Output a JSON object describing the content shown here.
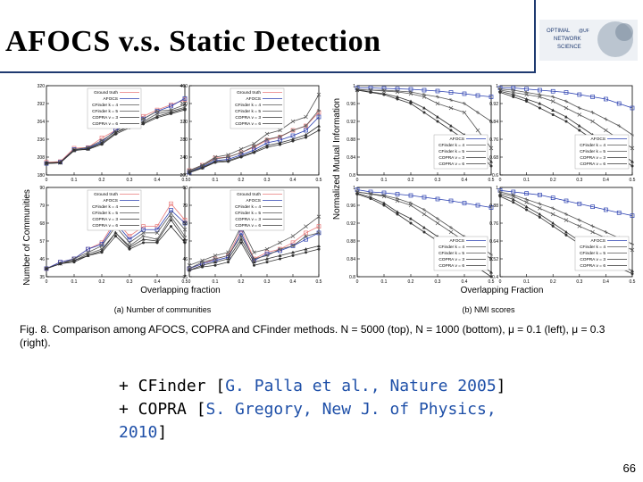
{
  "slide": {
    "title": "AFOCS v.s. Static Detection",
    "page_number": "66"
  },
  "logo": {
    "text_top": "OPTIMAL",
    "text_mid": "NETWORK",
    "text_bottom": "SCIENCE",
    "text_side": "@UF"
  },
  "figure": {
    "left_ylabel": "Number of Communities",
    "left_xlabel": "Overlapping fraction",
    "left_sublabel": "(a) Number of communities",
    "right_ylabel": "Normalized Mutual Information",
    "right_xlabel": "Overlapping Fraction",
    "right_sublabel": "(b) NMI scores",
    "legend_left": [
      "Ground truth",
      "AFOCS",
      "CFinder k = 4",
      "CFinder k = 5",
      "COPRA v = 3",
      "COPRA v = 6"
    ],
    "legend_right": [
      "AFOCS",
      "CFinder k = 4",
      "CFinder k = 5",
      "COPRA v = 3",
      "COPRA v = 6"
    ]
  },
  "caption": {
    "fig_label": "Fig. 8.",
    "text": "Comparison among AFOCS, COPRA and CFinder methods. N = 5000 (top), N = 1000 (bottom), μ = 0.1 (left), μ = 0.3 (right)."
  },
  "bullets": [
    {
      "prefix": "+ CFinder [",
      "ref": "G. Palla et al., Nature 2005",
      "suffix": "]"
    },
    {
      "prefix": "+ COPRA [",
      "ref": "S. Gregory, New J. of Physics, 2010",
      "suffix": "]"
    }
  ],
  "chart_data": [
    {
      "type": "line",
      "title": "",
      "panel": "number-communities-N5000-mu0.1",
      "x": [
        0,
        0.05,
        0.1,
        0.15,
        0.2,
        0.25,
        0.3,
        0.35,
        0.4,
        0.45,
        0.5
      ],
      "ylim": [
        180,
        320
      ],
      "xlim": [
        0,
        0.5
      ],
      "series": [
        {
          "name": "Ground truth",
          "values": [
            200,
            201,
            222,
            223,
            238,
            250,
            268,
            272,
            282,
            290,
            298
          ]
        },
        {
          "name": "AFOCS",
          "values": [
            198,
            200,
            220,
            222,
            232,
            250,
            260,
            268,
            280,
            288,
            300
          ]
        },
        {
          "name": "CFinder k = 4",
          "values": [
            198,
            199,
            219,
            221,
            230,
            246,
            256,
            264,
            276,
            280,
            286
          ]
        },
        {
          "name": "CFinder k = 5",
          "values": [
            198,
            199,
            220,
            223,
            234,
            248,
            262,
            268,
            280,
            282,
            290
          ]
        },
        {
          "name": "COPRA v = 3",
          "values": [
            199,
            200,
            219,
            220,
            228,
            244,
            254,
            260,
            270,
            276,
            282
          ]
        },
        {
          "name": "COPRA v = 6",
          "values": [
            198,
            199,
            218,
            221,
            230,
            246,
            258,
            262,
            272,
            278,
            284
          ]
        }
      ]
    },
    {
      "type": "line",
      "title": "",
      "panel": "number-communities-N5000-mu0.3",
      "x": [
        0,
        0.05,
        0.1,
        0.15,
        0.2,
        0.25,
        0.3,
        0.35,
        0.4,
        0.45,
        0.5
      ],
      "ylim": [
        200,
        400
      ],
      "xlim": [
        0,
        0.5
      ],
      "series": [
        {
          "name": "Ground truth",
          "values": [
            210,
            222,
            238,
            240,
            250,
            262,
            278,
            285,
            300,
            310,
            340
          ]
        },
        {
          "name": "AFOCS",
          "values": [
            206,
            218,
            232,
            235,
            245,
            256,
            272,
            278,
            288,
            300,
            330
          ]
        },
        {
          "name": "CFinder k = 4",
          "values": [
            210,
            222,
            240,
            245,
            258,
            270,
            292,
            300,
            320,
            330,
            380
          ]
        },
        {
          "name": "CFinder k = 5",
          "values": [
            208,
            220,
            236,
            240,
            250,
            264,
            280,
            286,
            300,
            310,
            345
          ]
        },
        {
          "name": "COPRA v = 3",
          "values": [
            205,
            215,
            228,
            230,
            240,
            250,
            262,
            268,
            276,
            284,
            300
          ]
        },
        {
          "name": "COPRA v = 6",
          "values": [
            206,
            216,
            230,
            232,
            242,
            252,
            266,
            272,
            280,
            290,
            310
          ]
        }
      ]
    },
    {
      "type": "line",
      "title": "",
      "panel": "number-communities-N1000-mu0.1",
      "x": [
        0,
        0.05,
        0.1,
        0.15,
        0.2,
        0.25,
        0.3,
        0.35,
        0.4,
        0.45,
        0.5
      ],
      "ylim": [
        35,
        90
      ],
      "xlim": [
        0,
        0.5
      ],
      "series": [
        {
          "name": "Ground truth",
          "values": [
            40,
            44,
            46,
            52,
            56,
            70,
            60,
            66,
            66,
            80,
            70
          ]
        },
        {
          "name": "AFOCS",
          "values": [
            40,
            44,
            46,
            52,
            55,
            68,
            58,
            64,
            64,
            76,
            68
          ]
        },
        {
          "name": "CFinder k = 4",
          "values": [
            40,
            43,
            46,
            50,
            54,
            66,
            56,
            62,
            62,
            74,
            64
          ]
        },
        {
          "name": "CFinder k = 5",
          "values": [
            40,
            43,
            45,
            49,
            52,
            62,
            54,
            60,
            58,
            72,
            60
          ]
        },
        {
          "name": "COPRA v = 3",
          "values": [
            40,
            43,
            44,
            48,
            50,
            60,
            52,
            56,
            56,
            66,
            56
          ]
        },
        {
          "name": "COPRA v = 6",
          "values": [
            40,
            43,
            45,
            48,
            51,
            62,
            53,
            58,
            57,
            70,
            58
          ]
        }
      ]
    },
    {
      "type": "line",
      "title": "",
      "panel": "number-communities-N1000-mu0.3",
      "x": [
        0,
        0.05,
        0.1,
        0.15,
        0.2,
        0.25,
        0.3,
        0.35,
        0.4,
        0.45,
        0.5
      ],
      "ylim": [
        35,
        90
      ],
      "xlim": [
        0,
        0.5
      ],
      "series": [
        {
          "name": "Ground truth",
          "values": [
            40,
            43,
            46,
            48,
            64,
            46,
            50,
            52,
            56,
            62,
            66
          ]
        },
        {
          "name": "AFOCS",
          "values": [
            40,
            43,
            45,
            47,
            62,
            45,
            49,
            51,
            54,
            58,
            62
          ]
        },
        {
          "name": "CFinder k = 4",
          "values": [
            42,
            45,
            48,
            50,
            66,
            50,
            52,
            56,
            60,
            66,
            72
          ]
        },
        {
          "name": "CFinder k = 5",
          "values": [
            40,
            44,
            46,
            48,
            60,
            46,
            48,
            52,
            54,
            60,
            62
          ]
        },
        {
          "name": "COPRA v = 3",
          "values": [
            39,
            41,
            42,
            44,
            56,
            42,
            44,
            46,
            48,
            50,
            52
          ]
        },
        {
          "name": "COPRA v = 6",
          "values": [
            39,
            42,
            44,
            46,
            58,
            44,
            46,
            48,
            50,
            52,
            54
          ]
        }
      ]
    },
    {
      "type": "line",
      "title": "",
      "panel": "nmi-N5000-mu0.1",
      "x": [
        0,
        0.05,
        0.1,
        0.15,
        0.2,
        0.25,
        0.3,
        0.35,
        0.4,
        0.45,
        0.5
      ],
      "ylim": [
        0.8,
        1.0
      ],
      "xlim": [
        0,
        0.5
      ],
      "series": [
        {
          "name": "AFOCS",
          "values": [
            0.995,
            0.995,
            0.994,
            0.993,
            0.992,
            0.99,
            0.988,
            0.985,
            0.982,
            0.978,
            0.975
          ]
        },
        {
          "name": "CFinder k = 4",
          "values": [
            0.99,
            0.99,
            0.988,
            0.986,
            0.982,
            0.975,
            0.96,
            0.95,
            0.94,
            0.9,
            0.86
          ]
        },
        {
          "name": "CFinder k = 5",
          "values": [
            0.992,
            0.99,
            0.99,
            0.988,
            0.986,
            0.98,
            0.975,
            0.968,
            0.96,
            0.94,
            0.92
          ]
        },
        {
          "name": "COPRA v = 3",
          "values": [
            0.99,
            0.985,
            0.98,
            0.97,
            0.96,
            0.94,
            0.92,
            0.9,
            0.88,
            0.85,
            0.82
          ]
        },
        {
          "name": "COPRA v = 6",
          "values": [
            0.99,
            0.986,
            0.982,
            0.975,
            0.965,
            0.95,
            0.93,
            0.91,
            0.89,
            0.86,
            0.83
          ]
        }
      ]
    },
    {
      "type": "line",
      "title": "",
      "panel": "nmi-N5000-mu0.3",
      "x": [
        0,
        0.05,
        0.1,
        0.15,
        0.2,
        0.25,
        0.3,
        0.35,
        0.4,
        0.45,
        0.5
      ],
      "ylim": [
        0.6,
        1.0
      ],
      "xlim": [
        0,
        0.5
      ],
      "series": [
        {
          "name": "AFOCS",
          "values": [
            0.99,
            0.99,
            0.985,
            0.98,
            0.975,
            0.97,
            0.96,
            0.95,
            0.94,
            0.92,
            0.9
          ]
        },
        {
          "name": "CFinder k = 4",
          "values": [
            0.98,
            0.97,
            0.96,
            0.95,
            0.93,
            0.9,
            0.87,
            0.84,
            0.8,
            0.76,
            0.72
          ]
        },
        {
          "name": "CFinder k = 5",
          "values": [
            0.985,
            0.98,
            0.97,
            0.96,
            0.95,
            0.93,
            0.9,
            0.88,
            0.85,
            0.82,
            0.78
          ]
        },
        {
          "name": "COPRA v = 3",
          "values": [
            0.97,
            0.95,
            0.93,
            0.9,
            0.87,
            0.84,
            0.8,
            0.76,
            0.72,
            0.68,
            0.64
          ]
        },
        {
          "name": "COPRA v = 6",
          "values": [
            0.975,
            0.96,
            0.94,
            0.92,
            0.89,
            0.86,
            0.82,
            0.78,
            0.74,
            0.7,
            0.66
          ]
        }
      ]
    },
    {
      "type": "line",
      "title": "",
      "panel": "nmi-N1000-mu0.1",
      "x": [
        0,
        0.05,
        0.1,
        0.15,
        0.2,
        0.25,
        0.3,
        0.35,
        0.4,
        0.45,
        0.5
      ],
      "ylim": [
        0.8,
        1.0
      ],
      "xlim": [
        0,
        0.5
      ],
      "series": [
        {
          "name": "AFOCS",
          "values": [
            0.995,
            0.99,
            0.988,
            0.985,
            0.982,
            0.978,
            0.974,
            0.97,
            0.965,
            0.96,
            0.955
          ]
        },
        {
          "name": "CFinder k = 4",
          "values": [
            0.99,
            0.985,
            0.98,
            0.97,
            0.96,
            0.94,
            0.92,
            0.9,
            0.88,
            0.86,
            0.84
          ]
        },
        {
          "name": "CFinder k = 5",
          "values": [
            0.99,
            0.986,
            0.982,
            0.975,
            0.965,
            0.95,
            0.93,
            0.91,
            0.89,
            0.87,
            0.85
          ]
        },
        {
          "name": "COPRA v = 3",
          "values": [
            0.985,
            0.975,
            0.96,
            0.94,
            0.92,
            0.9,
            0.88,
            0.86,
            0.84,
            0.82,
            0.8
          ]
        },
        {
          "name": "COPRA v = 6",
          "values": [
            0.987,
            0.978,
            0.965,
            0.945,
            0.93,
            0.91,
            0.89,
            0.87,
            0.85,
            0.83,
            0.81
          ]
        }
      ]
    },
    {
      "type": "line",
      "title": "",
      "panel": "nmi-N1000-mu0.3",
      "x": [
        0,
        0.05,
        0.1,
        0.15,
        0.2,
        0.25,
        0.3,
        0.35,
        0.4,
        0.45,
        0.5
      ],
      "ylim": [
        0.4,
        1.0
      ],
      "xlim": [
        0,
        0.5
      ],
      "series": [
        {
          "name": "AFOCS",
          "values": [
            0.98,
            0.97,
            0.96,
            0.95,
            0.93,
            0.91,
            0.89,
            0.87,
            0.85,
            0.83,
            0.81
          ]
        },
        {
          "name": "CFinder k = 4",
          "values": [
            0.96,
            0.94,
            0.9,
            0.86,
            0.82,
            0.78,
            0.74,
            0.7,
            0.66,
            0.62,
            0.58
          ]
        },
        {
          "name": "CFinder k = 5",
          "values": [
            0.97,
            0.95,
            0.92,
            0.89,
            0.86,
            0.82,
            0.78,
            0.74,
            0.7,
            0.66,
            0.62
          ]
        },
        {
          "name": "COPRA v = 3",
          "values": [
            0.94,
            0.9,
            0.85,
            0.8,
            0.74,
            0.68,
            0.62,
            0.56,
            0.5,
            0.46,
            0.42
          ]
        },
        {
          "name": "COPRA v = 6",
          "values": [
            0.95,
            0.92,
            0.87,
            0.82,
            0.76,
            0.7,
            0.64,
            0.58,
            0.52,
            0.48,
            0.44
          ]
        }
      ]
    }
  ]
}
